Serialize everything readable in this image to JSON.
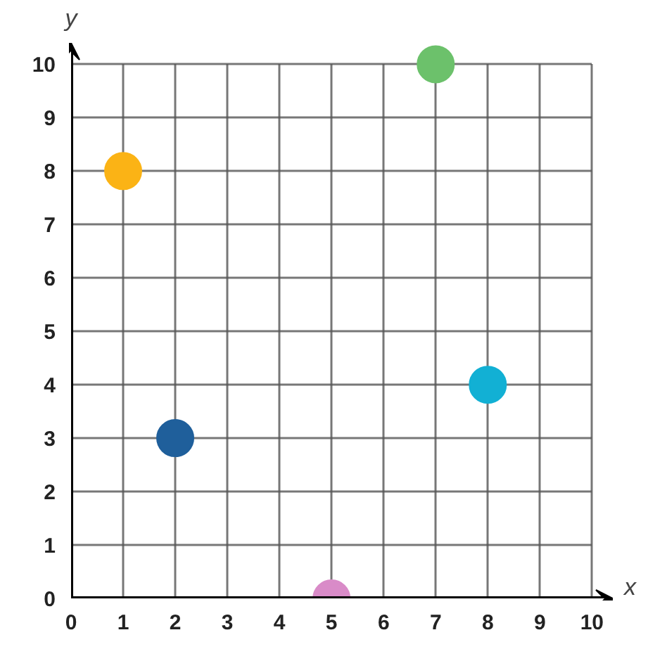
{
  "chart_data": {
    "type": "scatter",
    "xlabel": "x",
    "ylabel": "y",
    "x": [
      1,
      2,
      5,
      7,
      8
    ],
    "values": [
      8,
      3,
      0,
      10,
      4
    ],
    "colors": [
      "#fbb315",
      "#1f5f9b",
      "#d98bc8",
      "#6cc16b",
      "#12b0d4"
    ],
    "xlim": [
      0,
      10.4
    ],
    "ylim": [
      0,
      10.4
    ],
    "xticks": [
      0,
      1,
      2,
      3,
      4,
      5,
      6,
      7,
      8,
      9,
      10
    ],
    "yticks": [
      0,
      1,
      2,
      3,
      4,
      5,
      6,
      7,
      8,
      9,
      10
    ],
    "grid": true,
    "marker": "circle"
  }
}
